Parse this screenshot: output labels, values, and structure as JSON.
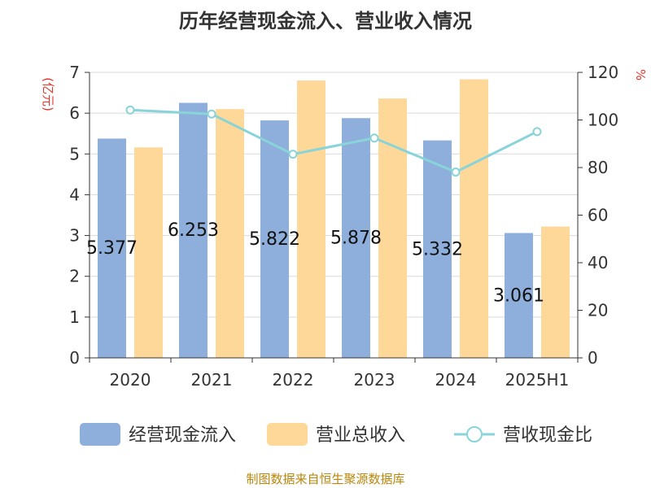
{
  "chart_data": {
    "type": "bar",
    "title": "历年经营现金流入、营业收入情况",
    "y_left_label": "(亿元)",
    "y_right_label": "%",
    "categories": [
      "2020",
      "2021",
      "2022",
      "2023",
      "2024",
      "2025H1"
    ],
    "y_left_range": [
      0,
      7
    ],
    "y_left_ticks": [
      "0",
      "1",
      "2",
      "3",
      "4",
      "5",
      "6",
      "7"
    ],
    "y_right_range": [
      0,
      120
    ],
    "y_right_ticks": [
      "0",
      "20",
      "40",
      "60",
      "80",
      "100",
      "120"
    ],
    "grid": true,
    "legend_position": "bottom",
    "series": [
      {
        "name": "经营现金流入",
        "type": "bar",
        "axis": "left",
        "color": "#8eaedb",
        "values": [
          5.377,
          6.253,
          5.822,
          5.878,
          5.332,
          3.061
        ],
        "data_labels": [
          "5.377",
          "6.253",
          "5.822",
          "5.878",
          "5.332",
          "3.061"
        ]
      },
      {
        "name": "营业总收入",
        "type": "bar",
        "axis": "left",
        "color": "#fed898",
        "values": [
          5.16,
          6.1,
          6.8,
          6.36,
          6.83,
          3.22
        ]
      },
      {
        "name": "营收现金比",
        "type": "line",
        "axis": "right",
        "color": "#88d4d8",
        "values": [
          104.2,
          102.5,
          85.6,
          92.4,
          78.1,
          95.1
        ]
      }
    ]
  },
  "source": "制图数据来自恒生聚源数据库"
}
